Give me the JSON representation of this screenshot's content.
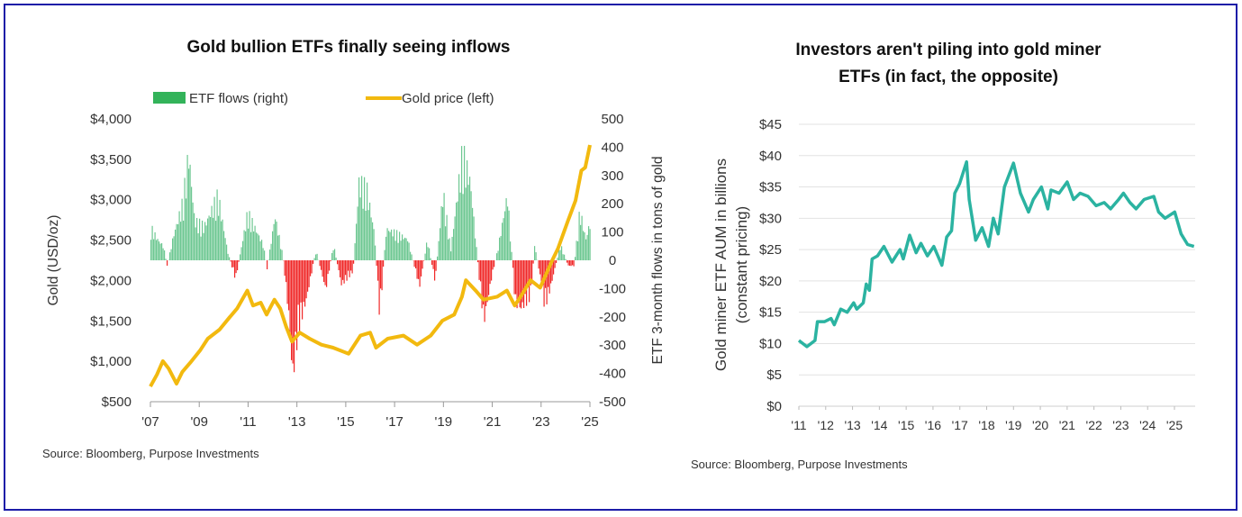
{
  "chart_data": [
    {
      "type": "bar+line",
      "title": "Gold bullion ETFs finally seeing inflows",
      "legend": {
        "placement": "top",
        "entries": [
          "ETF flows (right)",
          "Gold price (left)"
        ]
      },
      "ylabel_left": "Gold (USD/oz)",
      "ylabel_right": "ETF 3-month flows in tons of gold",
      "ylim_left": [
        500,
        4000
      ],
      "ylim_right": [
        -500,
        500
      ],
      "xlim": [
        2007,
        2025
      ],
      "x_ticks": [
        "'07",
        "'09",
        "'11",
        "'13",
        "'15",
        "'17",
        "'19",
        "'21",
        "'23",
        "'25"
      ],
      "y_ticks_left": [
        "$4,000",
        "$3,500",
        "$3,000",
        "$2,500",
        "$2,000",
        "$1,500",
        "$1,000",
        "$500"
      ],
      "y_ticks_right": [
        "500",
        "400",
        "300",
        "200",
        "100",
        "0",
        "-100",
        "-200",
        "-300",
        "-400",
        "-500"
      ],
      "source": "Source: Bloomberg, Purpose Investments",
      "colors": {
        "inflow": "#3cb46e",
        "outflow": "#f02828",
        "gold": "#f2b90f"
      },
      "series": [
        {
          "name": "Gold price (left)",
          "axis": "left",
          "x": [
            2007.0,
            2007.27,
            2007.51,
            2007.75,
            2008.07,
            2008.31,
            2008.63,
            2009.03,
            2009.35,
            2009.83,
            2010.23,
            2010.55,
            2010.97,
            2011.2,
            2011.52,
            2011.76,
            2012.08,
            2012.32,
            2012.56,
            2012.8,
            2013.12,
            2013.52,
            2014.0,
            2014.48,
            2015.12,
            2015.6,
            2016.0,
            2016.24,
            2016.72,
            2017.36,
            2017.92,
            2018.48,
            2018.96,
            2019.44,
            2019.76,
            2019.92,
            2020.32,
            2020.64,
            2021.2,
            2021.6,
            2021.92,
            2022.16,
            2022.57,
            2022.96,
            2023.45,
            2023.69,
            2024.09,
            2024.41,
            2024.65,
            2024.81,
            2025.0
          ],
          "y": [
            688,
            837,
            1003,
            910,
            723,
            870,
            983,
            1132,
            1280,
            1392,
            1540,
            1652,
            1875,
            1690,
            1726,
            1578,
            1763,
            1652,
            1430,
            1244,
            1355,
            1280,
            1206,
            1169,
            1094,
            1318,
            1355,
            1169,
            1280,
            1318,
            1206,
            1318,
            1503,
            1578,
            1800,
            2004,
            1875,
            1763,
            1800,
            1875,
            1690,
            1800,
            2004,
            1911,
            2246,
            2395,
            2729,
            2989,
            3361,
            3398,
            3677
          ]
        },
        {
          "name": "ETF flows (right)",
          "axis": "right",
          "x": [
            2007.0,
            2007.27,
            2007.51,
            2007.67,
            2007.91,
            2008.31,
            2008.55,
            2008.79,
            2009.19,
            2009.75,
            2010.15,
            2010.47,
            2010.96,
            2011.28,
            2011.6,
            2011.76,
            2012.08,
            2012.4,
            2012.64,
            2012.8,
            2013.04,
            2013.36,
            2013.76,
            2014.16,
            2014.48,
            2014.8,
            2015.28,
            2015.52,
            2015.84,
            2016.16,
            2016.37,
            2016.64,
            2017.12,
            2017.52,
            2018.0,
            2018.32,
            2018.64,
            2018.96,
            2019.28,
            2019.76,
            2020.08,
            2020.48,
            2020.64,
            2020.96,
            2021.2,
            2021.6,
            2021.92,
            2022.16,
            2022.56,
            2022.72,
            2023.13,
            2023.37,
            2023.77,
            2024.09,
            2024.33,
            2024.57,
            2024.81,
            2025.0
          ],
          "y": [
            132,
            84,
            57,
            -22,
            94,
            232,
            429,
            158,
            137,
            259,
            31,
            -75,
            190,
            126,
            63,
            -33,
            179,
            20,
            -213,
            -468,
            -266,
            -160,
            41,
            -118,
            63,
            -97,
            -44,
            312,
            286,
            105,
            -224,
            126,
            105,
            84,
            -107,
            84,
            -86,
            275,
            41,
            434,
            317,
            -107,
            -245,
            -65,
            41,
            264,
            -171,
            -192,
            -139,
            63,
            -182,
            -107,
            63,
            -22,
            -22,
            201,
            84,
            158
          ]
        }
      ]
    },
    {
      "type": "line",
      "title_lines": [
        "Investors aren't piling into gold miner",
        "ETFs (in fact, the opposite)"
      ],
      "ylabel_lines": [
        "Gold miner ETF AUM in billions",
        "(constant pricing)"
      ],
      "ylim": [
        0,
        45
      ],
      "xlim": [
        2011,
        2025.75
      ],
      "grid": true,
      "x_ticks": [
        "'11",
        "'12",
        "'13",
        "'14",
        "'15",
        "'16",
        "'17",
        "'18",
        "'19",
        "'20",
        "'21",
        "'22",
        "'23",
        "'24",
        "'25"
      ],
      "y_ticks": [
        "$45",
        "$40",
        "$35",
        "$30",
        "$25",
        "$20",
        "$15",
        "$10",
        "$5",
        "$0"
      ],
      "source": "Source: Bloomberg, Purpose Investments",
      "colors": {
        "line": "#2bb3a1",
        "grid": "#e2e2e2"
      },
      "series": [
        {
          "x": [
            2011.0,
            2011.3,
            2011.6,
            2011.69,
            2011.96,
            2012.2,
            2012.32,
            2012.56,
            2012.8,
            2013.04,
            2013.16,
            2013.4,
            2013.51,
            2013.63,
            2013.73,
            2013.93,
            2014.17,
            2014.47,
            2014.77,
            2014.89,
            2015.13,
            2015.37,
            2015.55,
            2015.79,
            2016.03,
            2016.33,
            2016.51,
            2016.69,
            2016.81,
            2016.99,
            2017.25,
            2017.35,
            2017.59,
            2017.83,
            2018.07,
            2018.25,
            2018.43,
            2018.66,
            2019.0,
            2019.26,
            2019.56,
            2019.74,
            2020.04,
            2020.28,
            2020.4,
            2020.7,
            2021.0,
            2021.24,
            2021.48,
            2021.78,
            2022.08,
            2022.38,
            2022.62,
            2022.92,
            2023.1,
            2023.34,
            2023.57,
            2023.87,
            2024.23,
            2024.41,
            2024.65,
            2025.01,
            2025.25,
            2025.49,
            2025.73
          ],
          "y": [
            10.5,
            9.5,
            10.5,
            13.5,
            13.5,
            14,
            13,
            15.5,
            15,
            16.5,
            15.5,
            16.5,
            19.5,
            18.5,
            23.5,
            24,
            25.5,
            23,
            25,
            23.5,
            27.3,
            24.5,
            26,
            24,
            25.5,
            22.5,
            27,
            28,
            34,
            35.5,
            39,
            33,
            26.5,
            28.5,
            25.5,
            30,
            27.5,
            35,
            38.8,
            34,
            31,
            33,
            35,
            31.5,
            34.5,
            34,
            35.8,
            33,
            34,
            33.5,
            32,
            32.5,
            31.5,
            33,
            34,
            32.5,
            31.5,
            33,
            33.5,
            31,
            30,
            31,
            27.5,
            25.8,
            25.5
          ]
        }
      ]
    }
  ]
}
